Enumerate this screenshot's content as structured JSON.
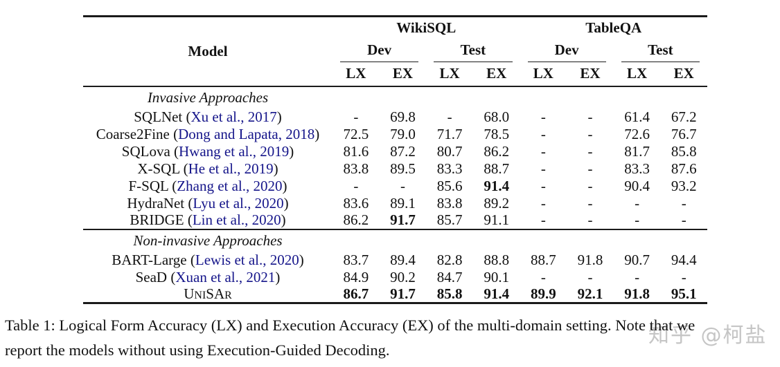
{
  "colors": {
    "citation_blue": "#15158a",
    "rule_black": "#1a1a1a",
    "text_black": "#111111",
    "watermark_gray": "#8c8c8c"
  },
  "table": {
    "model_header": "Model",
    "groups": [
      {
        "label": "WikiSQL"
      },
      {
        "label": "TableQA"
      }
    ],
    "subgroups": [
      "Dev",
      "Test",
      "Dev",
      "Test"
    ],
    "metrics": [
      "LX",
      "EX",
      "LX",
      "EX",
      "LX",
      "EX",
      "LX",
      "EX"
    ],
    "sections": [
      {
        "title": "Invasive Approaches",
        "rows": [
          {
            "name": "SQLNet",
            "citation": "Xu et al., 2017",
            "smallcaps": false,
            "values": [
              "-",
              "69.8",
              "-",
              "68.0",
              "-",
              "-",
              "61.4",
              "67.2"
            ],
            "bold": []
          },
          {
            "name": "Coarse2Fine",
            "citation": "Dong and Lapata, 2018",
            "smallcaps": false,
            "values": [
              "72.5",
              "79.0",
              "71.7",
              "78.5",
              "-",
              "-",
              "72.6",
              "76.7"
            ],
            "bold": []
          },
          {
            "name": "SQLova",
            "citation": "Hwang et al., 2019",
            "smallcaps": false,
            "values": [
              "81.6",
              "87.2",
              "80.7",
              "86.2",
              "-",
              "-",
              "81.7",
              "85.8"
            ],
            "bold": []
          },
          {
            "name": "X-SQL",
            "citation": "He et al., 2019",
            "smallcaps": false,
            "values": [
              "83.8",
              "89.5",
              "83.3",
              "88.7",
              "-",
              "-",
              "83.3",
              "87.6"
            ],
            "bold": []
          },
          {
            "name": "F-SQL",
            "citation": "Zhang et al., 2020",
            "smallcaps": false,
            "values": [
              "-",
              "-",
              "85.6",
              "91.4",
              "-",
              "-",
              "90.4",
              "93.2"
            ],
            "bold": [
              3
            ]
          },
          {
            "name": "HydraNet",
            "citation": "Lyu et al., 2020",
            "smallcaps": false,
            "values": [
              "83.6",
              "89.1",
              "83.8",
              "89.2",
              "-",
              "-",
              "-",
              "-"
            ],
            "bold": []
          },
          {
            "name": "BRIDGE",
            "citation": "Lin et al., 2020",
            "smallcaps": false,
            "values": [
              "86.2",
              "91.7",
              "85.7",
              "91.1",
              "-",
              "-",
              "-",
              "-"
            ],
            "bold": [
              1
            ]
          }
        ]
      },
      {
        "title": "Non-invasive Approaches",
        "rows": [
          {
            "name": "BART-Large",
            "citation": "Lewis et al., 2020",
            "smallcaps": false,
            "values": [
              "83.7",
              "89.4",
              "82.8",
              "88.8",
              "88.7",
              "91.8",
              "90.7",
              "94.4"
            ],
            "bold": []
          },
          {
            "name": "SeaD",
            "citation": "Xuan et al., 2021",
            "smallcaps": false,
            "values": [
              "84.9",
              "90.2",
              "84.7",
              "90.1",
              "-",
              "-",
              "-",
              "-"
            ],
            "bold": []
          },
          {
            "name": "UniSAr",
            "citation": null,
            "smallcaps": true,
            "values": [
              "86.7",
              "91.7",
              "85.8",
              "91.4",
              "89.9",
              "92.1",
              "91.8",
              "95.1"
            ],
            "bold": [
              0,
              1,
              2,
              3,
              4,
              5,
              6,
              7
            ]
          }
        ]
      }
    ]
  },
  "caption": {
    "lines": [
      "Table 1: Logical Form Accuracy (LX) and Execution Accuracy (EX) of the multi-domain setting. Note that we",
      "report the models without using Execution-Guided Decoding."
    ]
  },
  "watermark": "知乎 @柯盐"
}
